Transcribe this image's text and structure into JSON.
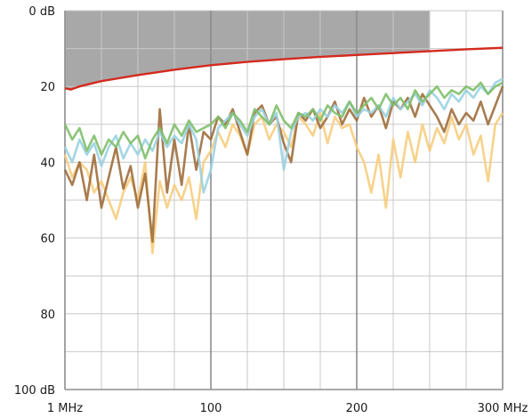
{
  "chart_data": {
    "type": "line",
    "y_unit": "dB",
    "y_reversed": true,
    "ylim": [
      0,
      100
    ],
    "xlim": [
      0,
      300
    ],
    "x_tick_labels": [
      "1 MHz",
      "100",
      "200",
      "300 MHz"
    ],
    "x_tick_values": [
      0,
      100,
      200,
      300
    ],
    "y_tick_labels": [
      "0 dB",
      "20",
      "40",
      "60",
      "80",
      "100 dB"
    ],
    "y_tick_values": [
      0,
      20,
      40,
      60,
      80,
      100
    ],
    "grid": true,
    "shaded_region": {
      "x_range": [
        0,
        250
      ],
      "fill": "#a8a8a8"
    },
    "limit_line": {
      "color": "#d42a1e",
      "x": [
        0,
        4,
        10,
        25,
        50,
        75,
        100,
        125,
        150,
        175,
        200,
        225,
        250,
        275,
        300
      ],
      "y": [
        20.5,
        20.8,
        20.0,
        18.6,
        17.0,
        15.6,
        14.4,
        13.5,
        12.8,
        12.2,
        11.7,
        11.2,
        10.7,
        10.2,
        9.8
      ]
    },
    "series": [
      {
        "color": "#f7cd7e",
        "x": [
          0,
          5,
          10,
          15,
          20,
          25,
          30,
          35,
          40,
          45,
          50,
          55,
          60,
          65,
          70,
          75,
          80,
          85,
          90,
          95,
          100,
          105,
          110,
          115,
          120,
          125,
          130,
          135,
          140,
          145,
          150,
          155,
          160,
          165,
          170,
          175,
          180,
          185,
          190,
          195,
          200,
          205,
          210,
          215,
          220,
          225,
          230,
          235,
          240,
          245,
          250,
          255,
          260,
          265,
          270,
          275,
          280,
          285,
          290,
          295,
          300
        ],
        "y": [
          38,
          44,
          40,
          42,
          48,
          45,
          50,
          55,
          48,
          44,
          50,
          40,
          64,
          45,
          52,
          46,
          50,
          44,
          55,
          40,
          37,
          32,
          36,
          30,
          33,
          38,
          30,
          28,
          34,
          30,
          32,
          36,
          28,
          30,
          33,
          27,
          35,
          28,
          31,
          30,
          36,
          40,
          48,
          38,
          52,
          34,
          44,
          32,
          40,
          30,
          37,
          31,
          35,
          28,
          34,
          30,
          38,
          33,
          45,
          30,
          27
        ]
      },
      {
        "color": "#9e6e3c",
        "x": [
          0,
          5,
          10,
          15,
          20,
          25,
          30,
          35,
          40,
          45,
          50,
          55,
          60,
          65,
          70,
          75,
          80,
          85,
          90,
          95,
          100,
          105,
          110,
          115,
          120,
          125,
          130,
          135,
          140,
          145,
          150,
          155,
          160,
          165,
          170,
          175,
          180,
          185,
          190,
          195,
          200,
          205,
          210,
          215,
          220,
          225,
          230,
          235,
          240,
          245,
          250,
          255,
          260,
          265,
          270,
          275,
          280,
          285,
          290,
          295,
          300
        ],
        "y": [
          42,
          46,
          40,
          50,
          38,
          52,
          44,
          36,
          47,
          41,
          52,
          43,
          61,
          26,
          48,
          34,
          46,
          30,
          42,
          32,
          34,
          28,
          30,
          26,
          32,
          38,
          27,
          25,
          30,
          28,
          35,
          40,
          27,
          29,
          26,
          31,
          28,
          24,
          30,
          26,
          29,
          23,
          28,
          25,
          31,
          24,
          26,
          23,
          28,
          22,
          25,
          28,
          32,
          26,
          30,
          27,
          29,
          24,
          30,
          25,
          20
        ]
      },
      {
        "color": "#9ad2e2",
        "x": [
          0,
          5,
          10,
          15,
          20,
          25,
          30,
          35,
          40,
          45,
          50,
          55,
          60,
          65,
          70,
          75,
          80,
          85,
          90,
          95,
          100,
          105,
          110,
          115,
          120,
          125,
          130,
          135,
          140,
          145,
          150,
          155,
          160,
          165,
          170,
          175,
          180,
          185,
          190,
          195,
          200,
          205,
          210,
          215,
          220,
          225,
          230,
          235,
          240,
          245,
          250,
          255,
          260,
          265,
          270,
          275,
          280,
          285,
          290,
          295,
          300
        ],
        "y": [
          36,
          40,
          34,
          38,
          35,
          41,
          36,
          33,
          39,
          35,
          38,
          34,
          37,
          32,
          36,
          33,
          35,
          30,
          34,
          48,
          42,
          31,
          29,
          27,
          30,
          33,
          28,
          26,
          30,
          27,
          42,
          32,
          28,
          27,
          29,
          26,
          28,
          25,
          27,
          24,
          28,
          26,
          27,
          25,
          28,
          23,
          26,
          24,
          22,
          25,
          21,
          23,
          26,
          22,
          24,
          21,
          23,
          20,
          22,
          19,
          18
        ]
      },
      {
        "color": "#7fbf6a",
        "x": [
          0,
          5,
          10,
          15,
          20,
          25,
          30,
          35,
          40,
          45,
          50,
          55,
          60,
          65,
          70,
          75,
          80,
          85,
          90,
          95,
          100,
          105,
          110,
          115,
          120,
          125,
          130,
          135,
          140,
          145,
          150,
          155,
          160,
          165,
          170,
          175,
          180,
          185,
          190,
          195,
          200,
          205,
          210,
          215,
          220,
          225,
          230,
          235,
          240,
          245,
          250,
          255,
          260,
          265,
          270,
          275,
          280,
          285,
          290,
          295,
          300
        ],
        "y": [
          30,
          34,
          31,
          37,
          33,
          38,
          34,
          36,
          32,
          35,
          33,
          39,
          34,
          31,
          35,
          30,
          33,
          29,
          32,
          31,
          30,
          28,
          31,
          27,
          29,
          32,
          26,
          28,
          30,
          25,
          29,
          31,
          27,
          28,
          26,
          29,
          25,
          27,
          28,
          24,
          27,
          25,
          23,
          26,
          22,
          25,
          23,
          26,
          21,
          24,
          22,
          20,
          23,
          21,
          22,
          20,
          21,
          19,
          22,
          20,
          19
        ]
      }
    ]
  }
}
